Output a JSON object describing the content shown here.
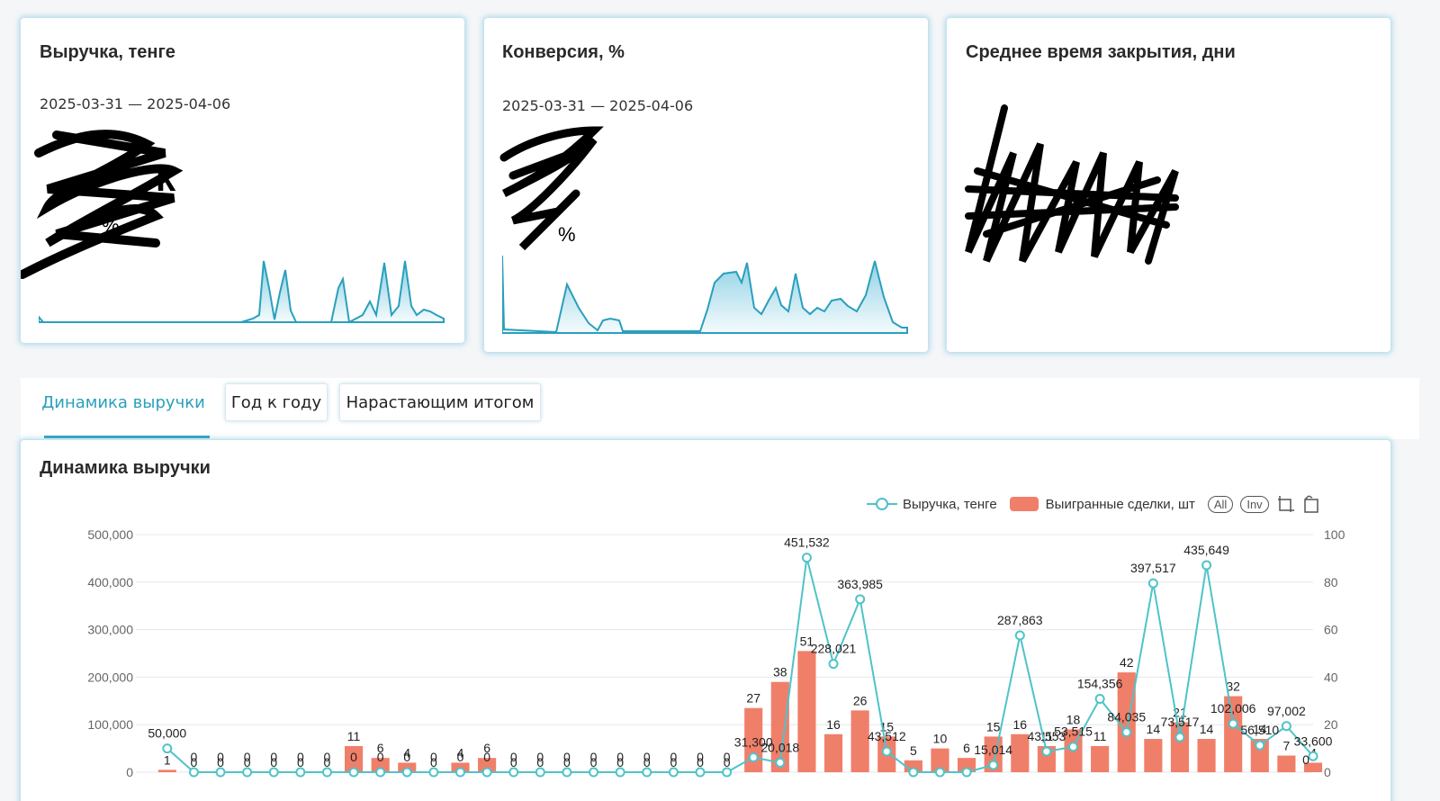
{
  "kpi": [
    {
      "title": "Выручка, тенге",
      "period": "2025-03-31 — 2025-04-06"
    },
    {
      "title": "Конверсия, %",
      "period": "2025-03-31 — 2025-04-06"
    },
    {
      "title": "Среднее время закрытия, дни"
    }
  ],
  "tabs": [
    "Динамика выручки",
    "Год к году",
    "Нарастающим итогом"
  ],
  "chart_card": {
    "title": "Динамика выручки"
  },
  "legend": {
    "line_label": "Выручка, тенге",
    "bar_label": "Выигранные сделки, шт",
    "all_btn": "All",
    "inv_btn": "Inv"
  },
  "colors": {
    "line": "#4fc3c8",
    "bar": "#f07f6a",
    "accent": "#2a9fbd"
  },
  "chart_data": {
    "type": "bar",
    "title": "Динамика выручки",
    "y_left": {
      "ticks": [
        "0",
        "100,000",
        "200,000",
        "300,000",
        "400,000",
        "500,000"
      ],
      "min": 0,
      "max": 500000
    },
    "y_right": {
      "ticks": [
        "0",
        "20",
        "40",
        "60",
        "80",
        "100"
      ],
      "min": 0,
      "max": 100
    },
    "series": [
      {
        "name": "Выручка, тенге",
        "type": "line",
        "values": [
          50000,
          0,
          0,
          0,
          0,
          0,
          0,
          0,
          0,
          0,
          0,
          0,
          0,
          0,
          0,
          0,
          0,
          0,
          0,
          0,
          0,
          0,
          31300,
          20018,
          451532,
          228021,
          363985,
          43512,
          0,
          0,
          0,
          15014,
          287863,
          43553,
          53515,
          154356,
          84035,
          397517,
          73517,
          435649,
          102006,
          56510,
          97002,
          33600
        ],
        "labels": [
          "50,000",
          "0",
          "0",
          "0",
          "0",
          "0",
          "0",
          "0",
          "0",
          "0",
          "0",
          "0",
          "0",
          "0",
          "0",
          "0",
          "0",
          "0",
          "0",
          "0",
          "0",
          "0",
          "31,300",
          "20,018",
          "451,532",
          "228,021",
          "363,985",
          "43,512",
          "",
          "",
          "",
          "15,014",
          "287,863",
          "43,553",
          "53,515",
          "154,356",
          "84,035",
          "397,517",
          "73,517",
          "435,649",
          "102,006",
          "56,510",
          "97,002",
          "33,600"
        ]
      },
      {
        "name": "Выигранные сделки, шт",
        "type": "bar",
        "values": [
          1,
          0,
          0,
          0,
          0,
          0,
          0,
          11,
          6,
          4,
          0,
          4,
          6,
          0,
          0,
          0,
          0,
          0,
          0,
          0,
          0,
          0,
          27,
          38,
          51,
          16,
          26,
          15,
          5,
          10,
          6,
          15,
          16,
          11,
          18,
          11,
          42,
          14,
          21,
          14,
          32,
          14,
          7,
          4
        ],
        "labels": [
          "1",
          "0",
          "0",
          "0",
          "0",
          "0",
          "0",
          "11",
          "6",
          "4",
          "0",
          "4",
          "6",
          "0",
          "0",
          "0",
          "0",
          "0",
          "0",
          "0",
          "0",
          "0",
          "27",
          "38",
          "51",
          "16",
          "26",
          "15",
          "5",
          "10",
          "6",
          "15",
          "16",
          "11",
          "18",
          "11",
          "42",
          "14",
          "21",
          "14",
          "32",
          "14",
          "7",
          "4"
        ]
      }
    ],
    "extra_labels": [
      "0",
      "0",
      "0",
      "0",
      "0",
      "0",
      "0"
    ]
  }
}
